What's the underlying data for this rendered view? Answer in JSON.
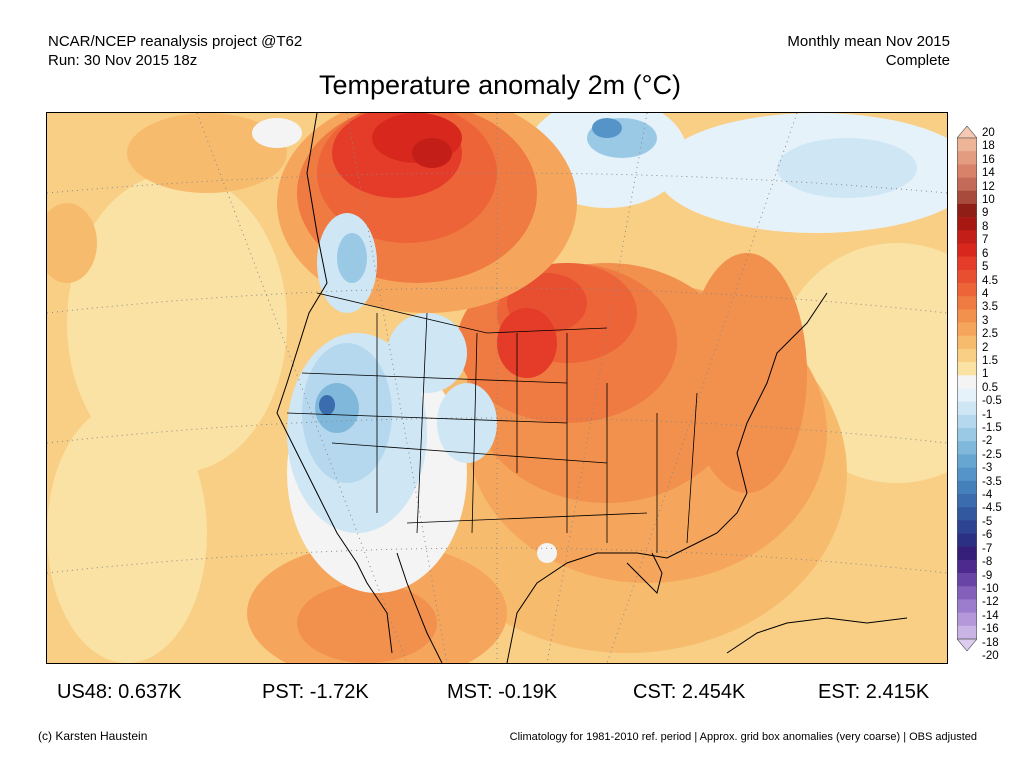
{
  "header": {
    "line1_left": "NCAR/NCEP reanalysis project @T62",
    "line2_left": "Run: 30 Nov 2015 18z",
    "line1_right": "Monthly mean Nov 2015",
    "line2_right": "Complete"
  },
  "title": "Temperature anomaly 2m (°C)",
  "colorbar": {
    "labels": [
      "20",
      "18",
      "16",
      "14",
      "12",
      "10",
      "9",
      "8",
      "7",
      "6",
      "5",
      "4.5",
      "4",
      "3.5",
      "3",
      "2.5",
      "2",
      "1.5",
      "1",
      "0.5",
      "-0.5",
      "-1",
      "-1.5",
      "-2",
      "-2.5",
      "-3",
      "-3.5",
      "-4",
      "-4.5",
      "-5",
      "-6",
      "-7",
      "-8",
      "-9",
      "-10",
      "-12",
      "-14",
      "-16",
      "-18",
      "-20"
    ],
    "colors": [
      "#f6c9b4",
      "#eeb498",
      "#e39c80",
      "#d8826a",
      "#c46a58",
      "#a84a3c",
      "#8e1e16",
      "#a81812",
      "#c41e18",
      "#d8281e",
      "#e43c28",
      "#e84e30",
      "#ec6438",
      "#ef7a42",
      "#f2904e",
      "#f5a65c",
      "#f7bb6e",
      "#f9cf86",
      "#fae2a4",
      "#f4f4f4",
      "#e6f2fa",
      "#cfe6f4",
      "#b5d8ee",
      "#9ac9e6",
      "#80b8dc",
      "#68a6d2",
      "#5494c8",
      "#4480bc",
      "#3a6cae",
      "#3258a0",
      "#2c4492",
      "#2c3084",
      "#341e7a",
      "#4c2a8e",
      "#6844a6",
      "#8460ba",
      "#9c7ccc",
      "#b498da",
      "#cab4e6",
      "#dcccf0"
    ]
  },
  "stats": [
    {
      "label": "US48: 0.637K"
    },
    {
      "label": "PST: -1.72K"
    },
    {
      "label": "MST: -0.19K"
    },
    {
      "label": "CST: 2.454K"
    },
    {
      "label": "EST: 2.415K"
    }
  ],
  "footer": {
    "left": "(c) Karsten Haustein",
    "right": "Climatology for 1981-2010 ref. period | Approx. grid box anomalies (very coarse) | OBS adjusted"
  }
}
